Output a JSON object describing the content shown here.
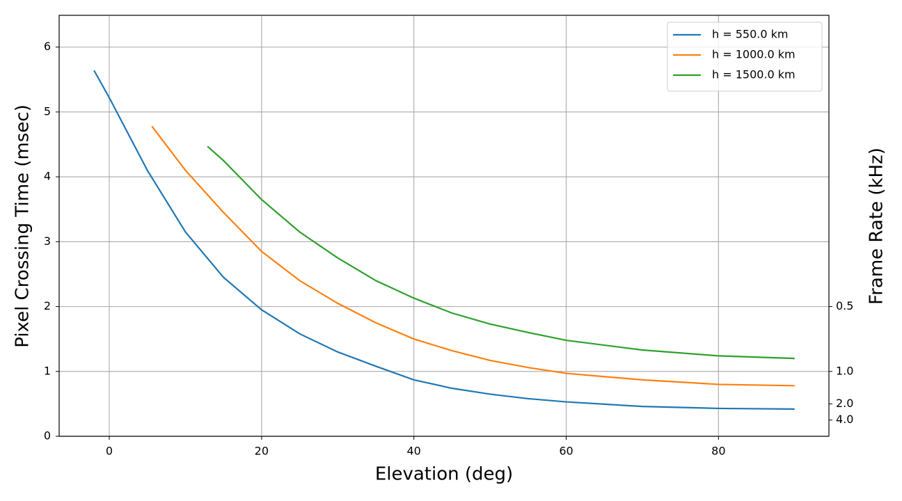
{
  "chart_data": {
    "type": "line",
    "xlabel": "Elevation (deg)",
    "ylabel": "Pixel Crossing Time (msec)",
    "y2label": "Frame Rate (kHz)",
    "xlim": [
      -6.58,
      94.5
    ],
    "xticks": [
      0,
      20,
      40,
      60,
      80
    ],
    "ylim": [
      0,
      6.49
    ],
    "yticks": [
      0,
      1,
      2,
      3,
      4,
      5,
      6
    ],
    "y2scale": "reciprocal",
    "y2ticks": [
      0.5,
      {
        "value": 1,
        "label": "1.0"
      },
      {
        "value": 2,
        "label": "2.0"
      },
      {
        "value": 4,
        "label": "4.0"
      }
    ],
    "grid": true,
    "legend": "upper right",
    "series": [
      {
        "name": "h = 550.0 km",
        "color": "#1f77b4",
        "x": [
          -2,
          0,
          5,
          10,
          15,
          20,
          25,
          30,
          35,
          40,
          45,
          50,
          55,
          60,
          70,
          80,
          90
        ],
        "values": [
          5.64,
          5.22,
          4.1,
          3.15,
          2.45,
          1.95,
          1.58,
          1.3,
          1.08,
          0.87,
          0.74,
          0.65,
          0.58,
          0.53,
          0.46,
          0.43,
          0.42
        ]
      },
      {
        "name": "h = 1000.0 km",
        "color": "#ff7f0e",
        "x": [
          5.6,
          10,
          15,
          20,
          25,
          30,
          35,
          40,
          45,
          50,
          55,
          60,
          70,
          80,
          90
        ],
        "values": [
          4.78,
          4.1,
          3.45,
          2.85,
          2.4,
          2.05,
          1.75,
          1.5,
          1.32,
          1.17,
          1.06,
          0.97,
          0.87,
          0.8,
          0.78
        ]
      },
      {
        "name": "h = 1500.0 km",
        "color": "#2ca02c",
        "x": [
          12.9,
          15,
          20,
          25,
          30,
          35,
          40,
          45,
          50,
          55,
          60,
          70,
          80,
          90
        ],
        "values": [
          4.47,
          4.25,
          3.65,
          3.15,
          2.75,
          2.4,
          2.13,
          1.9,
          1.73,
          1.6,
          1.48,
          1.33,
          1.24,
          1.2
        ]
      }
    ]
  }
}
